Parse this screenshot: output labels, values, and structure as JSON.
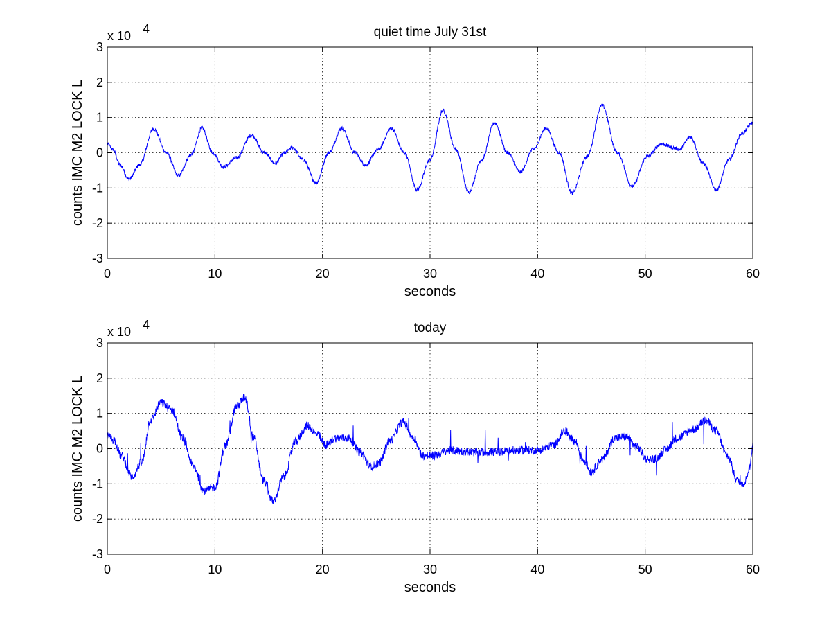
{
  "chart_data": [
    {
      "type": "line",
      "title": "quiet time July 31st",
      "xlabel": "seconds",
      "ylabel": "counts IMC M2 LOCK L",
      "y_multiplier_label": "x 10",
      "y_multiplier_exponent": "4",
      "xlim": [
        0,
        60
      ],
      "ylim": [
        -3,
        3
      ],
      "xticks": [
        0,
        10,
        20,
        30,
        40,
        50,
        60
      ],
      "yticks": [
        -3,
        -2,
        -1,
        0,
        1,
        2,
        3
      ],
      "xtick_labels": [
        "0",
        "10",
        "20",
        "30",
        "40",
        "50",
        "60"
      ],
      "ytick_labels": [
        "-3",
        "-2",
        "-1",
        "0",
        "1",
        "2",
        "3"
      ],
      "grid": true,
      "color": "#0000ff",
      "noise": 0.05,
      "series": [
        {
          "x": [
            0,
            0.5,
            1.2,
            2.0,
            3.0,
            4.3,
            5.5,
            6.6,
            7.8,
            8.8,
            9.8,
            10.8,
            12.0,
            13.4,
            14.6,
            15.6,
            16.5,
            17.2,
            18.2,
            19.4,
            20.6,
            21.8,
            23.0,
            24.0,
            25.2,
            26.4,
            27.6,
            28.8,
            30.0,
            31.2,
            32.4,
            33.6,
            34.8,
            36.0,
            37.2,
            38.4,
            39.6,
            40.8,
            42.0,
            43.2,
            44.6,
            46.0,
            47.4,
            48.8,
            50.2,
            51.5,
            52.5,
            53.2,
            54.2,
            55.4,
            56.6,
            57.8,
            59.0,
            60.0
          ],
          "y": [
            0.25,
            0.1,
            -0.35,
            -0.75,
            -0.35,
            0.68,
            0.0,
            -0.65,
            -0.05,
            0.7,
            0.0,
            -0.4,
            -0.15,
            0.5,
            0.0,
            -0.3,
            0.0,
            0.15,
            -0.2,
            -0.85,
            0.0,
            0.7,
            0.0,
            -0.35,
            0.1,
            0.7,
            0.0,
            -1.05,
            -0.2,
            1.2,
            0.1,
            -1.12,
            -0.2,
            0.85,
            0.0,
            -0.55,
            0.1,
            0.7,
            0.0,
            -1.15,
            -0.1,
            1.35,
            0.0,
            -0.95,
            -0.1,
            0.25,
            0.15,
            0.1,
            0.45,
            -0.3,
            -1.05,
            -0.2,
            0.55,
            0.85
          ]
        }
      ]
    },
    {
      "type": "line",
      "title": "today",
      "xlabel": "seconds",
      "ylabel": "counts IMC M2 LOCK L",
      "y_multiplier_label": "x 10",
      "y_multiplier_exponent": "4",
      "xlim": [
        0,
        60
      ],
      "ylim": [
        -3,
        3
      ],
      "xticks": [
        0,
        10,
        20,
        30,
        40,
        50,
        60
      ],
      "yticks": [
        -3,
        -2,
        -1,
        0,
        1,
        2,
        3
      ],
      "xtick_labels": [
        "0",
        "10",
        "20",
        "30",
        "40",
        "50",
        "60"
      ],
      "ytick_labels": [
        "-3",
        "-2",
        "-1",
        "0",
        "1",
        "2",
        "3"
      ],
      "grid": true,
      "color": "#0000ff",
      "noise": 0.12,
      "series": [
        {
          "x": [
            0,
            0.6,
            1.3,
            2.3,
            3.2,
            4.0,
            5.0,
            6.0,
            7.0,
            8.0,
            9.0,
            10.0,
            11.0,
            12.0,
            12.8,
            13.6,
            14.5,
            15.4,
            16.4,
            17.5,
            18.6,
            19.5,
            20.3,
            21.2,
            22.4,
            23.5,
            24.5,
            25.3,
            26.2,
            27.5,
            28.5,
            29.3,
            30.2,
            32.0,
            34.0,
            36.0,
            38.0,
            40.0,
            41.5,
            42.5,
            43.5,
            44.2,
            45.0,
            46.0,
            47.2,
            48.2,
            49.2,
            50.2,
            51.0,
            51.8,
            53.0,
            54.5,
            55.6,
            56.6,
            57.6,
            58.6,
            59.2,
            59.7,
            60.0
          ],
          "y": [
            0.35,
            0.25,
            -0.2,
            -0.8,
            -0.4,
            0.8,
            1.3,
            1.1,
            0.3,
            -0.5,
            -1.2,
            -1.1,
            0.1,
            1.2,
            1.45,
            0.3,
            -0.9,
            -1.5,
            -0.8,
            0.2,
            0.65,
            0.4,
            0.1,
            0.3,
            0.3,
            -0.1,
            -0.5,
            -0.4,
            0.2,
            0.75,
            0.3,
            -0.2,
            -0.2,
            -0.05,
            -0.1,
            -0.1,
            -0.05,
            -0.05,
            0.1,
            0.5,
            0.2,
            -0.3,
            -0.65,
            -0.3,
            0.3,
            0.35,
            0.05,
            -0.3,
            -0.3,
            -0.05,
            0.3,
            0.55,
            0.8,
            0.5,
            -0.2,
            -0.9,
            -1.0,
            -0.55,
            0.1
          ]
        }
      ]
    }
  ]
}
